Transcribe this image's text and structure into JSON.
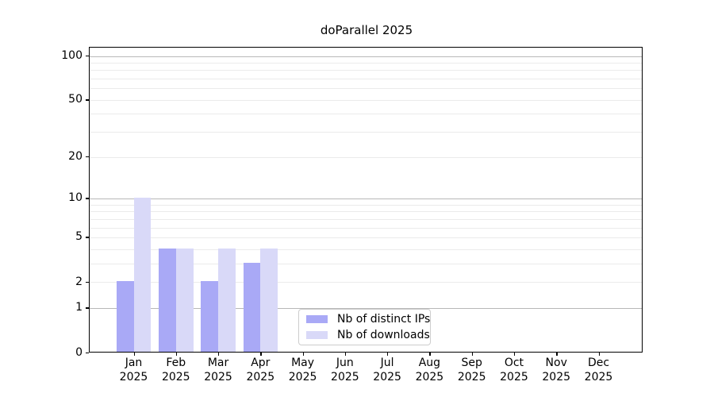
{
  "chart_data": {
    "type": "bar",
    "title": "doParallel 2025",
    "categories": [
      "Jan",
      "Feb",
      "Mar",
      "Apr",
      "May",
      "Jun",
      "Jul",
      "Aug",
      "Sep",
      "Oct",
      "Nov",
      "Dec"
    ],
    "x_year": "2025",
    "series": [
      {
        "name": "Nb of distinct IPs",
        "color": "#a9a9f6",
        "values": [
          2,
          4,
          2,
          3,
          0,
          0,
          0,
          0,
          0,
          0,
          0,
          0
        ]
      },
      {
        "name": "Nb of downloads",
        "color": "#d9d9f8",
        "values": [
          10,
          4,
          4,
          4,
          0,
          0,
          0,
          0,
          0,
          0,
          0,
          0
        ]
      }
    ],
    "y_axis": {
      "scale": "log10(1+x)",
      "ticks": [
        0,
        1,
        2,
        5,
        10,
        20,
        50,
        100
      ],
      "max": 114,
      "major_grid": [
        1,
        10,
        100
      ],
      "minor_grid": [
        2,
        3,
        4,
        5,
        6,
        7,
        8,
        9,
        20,
        30,
        40,
        50,
        60,
        70,
        80,
        90
      ]
    },
    "legend_position": "lower center",
    "grid": "on"
  },
  "colors": {
    "bar_distinct_ips": "#a9a9f6",
    "bar_downloads": "#d9d9f8",
    "grid_major": "#b8b8b8",
    "grid_minor": "#ebebeb",
    "axis": "#000000",
    "legend_border": "#cccccc",
    "text": "#000000"
  }
}
